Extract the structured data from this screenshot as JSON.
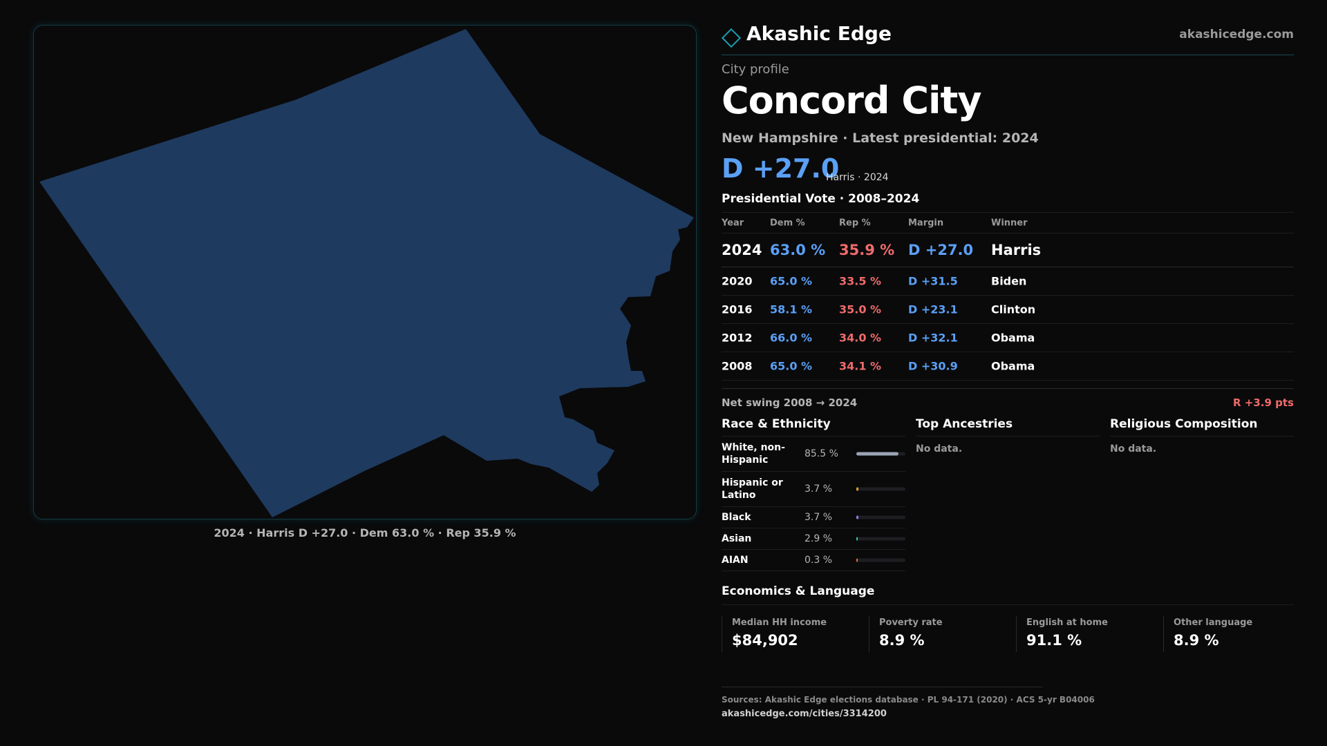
{
  "map": {
    "caption": "2024 · Harris D +27.0 · Dem 63.0 % · Rep 35.9 %",
    "fill_color": "#1f3a5f"
  },
  "header": {
    "brand": "Akashic Edge",
    "url": "akashicedge.com"
  },
  "profile": {
    "kicker": "City profile",
    "title": "Concord City",
    "subtitle": "New Hampshire · Latest presidential: 2024",
    "margin": "D +27.0",
    "margin_sub": "Harris · 2024"
  },
  "vote": {
    "title": "Presidential Vote · 2008–2024",
    "headers": {
      "year": "Year",
      "dem": "Dem %",
      "rep": "Rep %",
      "margin": "Margin",
      "winner": "Winner"
    },
    "rows": [
      {
        "year": "2024",
        "dem": "63.0 %",
        "rep": "35.9 %",
        "margin": "D +27.0",
        "winner": "Harris"
      },
      {
        "year": "2020",
        "dem": "65.0 %",
        "rep": "33.5 %",
        "margin": "D +31.5",
        "winner": "Biden"
      },
      {
        "year": "2016",
        "dem": "58.1 %",
        "rep": "35.0 %",
        "margin": "D +23.1",
        "winner": "Clinton"
      },
      {
        "year": "2012",
        "dem": "66.0 %",
        "rep": "34.0 %",
        "margin": "D +32.1",
        "winner": "Obama"
      },
      {
        "year": "2008",
        "dem": "65.0 %",
        "rep": "34.1 %",
        "margin": "D +30.9",
        "winner": "Obama"
      }
    ],
    "swing_label": "Net swing 2008 → 2024",
    "swing_value": "R +3.9 pts"
  },
  "race": {
    "title": "Race & Ethnicity",
    "rows": [
      {
        "label": "White, non-Hispanic",
        "pct": "85.5 %",
        "value": 85.5,
        "color": "#9aa4b4"
      },
      {
        "label": "Hispanic or Latino",
        "pct": "3.7 %",
        "value": 3.7,
        "color": "#e0a030"
      },
      {
        "label": "Black",
        "pct": "3.7 %",
        "value": 3.7,
        "color": "#8a7ef0"
      },
      {
        "label": "Asian",
        "pct": "2.9 %",
        "value": 2.9,
        "color": "#3cc0a0"
      },
      {
        "label": "AIAN",
        "pct": "0.3 %",
        "value": 0.3,
        "color": "#e07040"
      }
    ]
  },
  "ancestries": {
    "title": "Top Ancestries",
    "empty": "No data."
  },
  "religion": {
    "title": "Religious Composition",
    "empty": "No data."
  },
  "economics": {
    "title": "Economics & Language",
    "cards": [
      {
        "label": "Median HH income",
        "value": "$84,902"
      },
      {
        "label": "Poverty rate",
        "value": "8.9 %"
      },
      {
        "label": "English at home",
        "value": "91.1 %"
      },
      {
        "label": "Other language",
        "value": "8.9 %"
      }
    ]
  },
  "footer": {
    "sources": "Sources: Akashic Edge elections database · PL 94-171 (2020) · ACS 5-yr B04006",
    "url": "akashicedge.com/cities/3314200"
  }
}
